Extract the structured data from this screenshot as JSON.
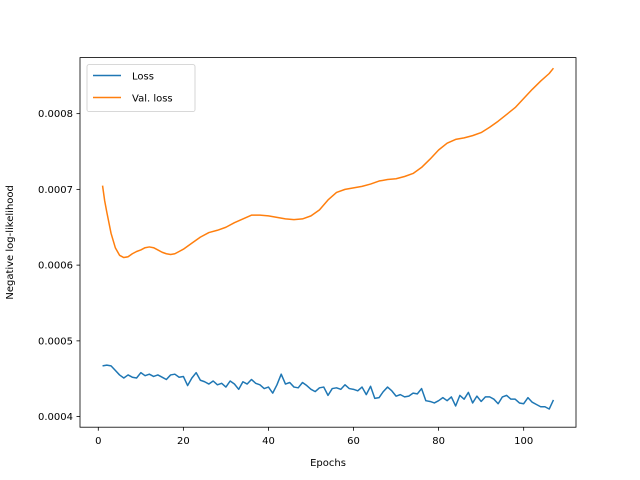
{
  "chart_data": {
    "type": "line",
    "xlabel": "Epochs",
    "ylabel": "Negative log-likelihood",
    "xlim": [
      -4.3,
      112.3
    ],
    "ylim": [
      0.000386,
      0.000874
    ],
    "xticks": [
      0,
      20,
      40,
      60,
      80,
      100
    ],
    "yticks": [
      0.0004,
      0.0005,
      0.0006,
      0.0007,
      0.0008
    ],
    "ytick_labels": [
      "0.0004",
      "0.0005",
      "0.0006",
      "0.0007",
      "0.0008"
    ],
    "grid": false,
    "legend_position": "top-left",
    "series": [
      {
        "name": "Loss",
        "color": "#1f77b4",
        "x": [
          1,
          2,
          3,
          4,
          5,
          6,
          7,
          8,
          9,
          10,
          11,
          12,
          13,
          14,
          15,
          16,
          17,
          18,
          19,
          20,
          21,
          22,
          23,
          24,
          25,
          26,
          27,
          28,
          29,
          30,
          31,
          32,
          33,
          34,
          35,
          36,
          37,
          38,
          39,
          40,
          41,
          42,
          43,
          44,
          45,
          46,
          47,
          48,
          49,
          50,
          51,
          52,
          53,
          54,
          55,
          56,
          57,
          58,
          59,
          60,
          61,
          62,
          63,
          64,
          65,
          66,
          67,
          68,
          69,
          70,
          71,
          72,
          73,
          74,
          75,
          76,
          77,
          78,
          79,
          80,
          81,
          82,
          83,
          84,
          85,
          86,
          87,
          88,
          89,
          90,
          91,
          92,
          93,
          94,
          95,
          96,
          97,
          98,
          99,
          100,
          101,
          102,
          103,
          104,
          105,
          106,
          107
        ],
        "values": [
          0.000467,
          0.000468,
          0.000467,
          0.000461,
          0.000455,
          0.000451,
          0.000455,
          0.000452,
          0.000451,
          0.000458,
          0.000454,
          0.000456,
          0.000453,
          0.000455,
          0.000452,
          0.000449,
          0.000455,
          0.000456,
          0.000452,
          0.000453,
          0.000441,
          0.000451,
          0.000458,
          0.000448,
          0.000446,
          0.000443,
          0.000447,
          0.000442,
          0.000444,
          0.000439,
          0.000447,
          0.000443,
          0.000436,
          0.000446,
          0.000443,
          0.000449,
          0.000444,
          0.000442,
          0.000437,
          0.000439,
          0.000431,
          0.000442,
          0.000456,
          0.000443,
          0.000445,
          0.000439,
          0.000438,
          0.000445,
          0.000441,
          0.000436,
          0.000433,
          0.000438,
          0.000439,
          0.000428,
          0.000437,
          0.000438,
          0.000436,
          0.000442,
          0.000437,
          0.000436,
          0.000434,
          0.000439,
          0.000429,
          0.00044,
          0.000424,
          0.000425,
          0.000433,
          0.000439,
          0.000434,
          0.000427,
          0.000429,
          0.000426,
          0.000427,
          0.000431,
          0.00043,
          0.000437,
          0.000421,
          0.00042,
          0.000418,
          0.000421,
          0.000425,
          0.000421,
          0.000426,
          0.000414,
          0.000428,
          0.000423,
          0.000432,
          0.000418,
          0.000427,
          0.00042,
          0.000426,
          0.000426,
          0.000423,
          0.000417,
          0.000426,
          0.000428,
          0.000423,
          0.000423,
          0.000418,
          0.000417,
          0.000425,
          0.000419,
          0.000416,
          0.000413,
          0.000413,
          0.00041,
          0.000422
        ]
      },
      {
        "name": "Val. loss",
        "color": "#ff7f0e",
        "x": [
          1,
          1.5,
          2,
          3,
          4,
          5,
          6,
          7,
          8,
          9,
          10,
          11,
          12,
          13,
          14,
          15,
          16,
          17,
          18,
          19,
          20,
          22,
          24,
          26,
          28,
          30,
          32,
          34,
          36,
          38,
          40,
          42,
          44,
          46,
          48,
          50,
          52,
          54,
          56,
          58,
          60,
          62,
          64,
          66,
          68,
          70,
          72,
          74,
          76,
          78,
          80,
          82,
          84,
          86,
          88,
          90,
          92,
          94,
          96,
          98,
          100,
          102,
          104,
          106,
          107
        ],
        "values": [
          0.000705,
          0.000685,
          0.00067,
          0.000642,
          0.000623,
          0.000613,
          0.00061,
          0.000611,
          0.000615,
          0.000618,
          0.00062,
          0.000623,
          0.000624,
          0.000623,
          0.00062,
          0.000617,
          0.000615,
          0.000614,
          0.000615,
          0.000618,
          0.000621,
          0.000629,
          0.000637,
          0.000643,
          0.000646,
          0.00065,
          0.000656,
          0.000661,
          0.000666,
          0.000666,
          0.000665,
          0.000663,
          0.000661,
          0.00066,
          0.000661,
          0.000665,
          0.000673,
          0.000686,
          0.000696,
          0.0007,
          0.000702,
          0.000704,
          0.000707,
          0.000711,
          0.000713,
          0.000714,
          0.000717,
          0.000721,
          0.000729,
          0.00074,
          0.000752,
          0.000761,
          0.000766,
          0.000768,
          0.000771,
          0.000775,
          0.000782,
          0.00079,
          0.000799,
          0.000808,
          0.00082,
          0.000832,
          0.000843,
          0.000853,
          0.00086
        ]
      }
    ]
  }
}
